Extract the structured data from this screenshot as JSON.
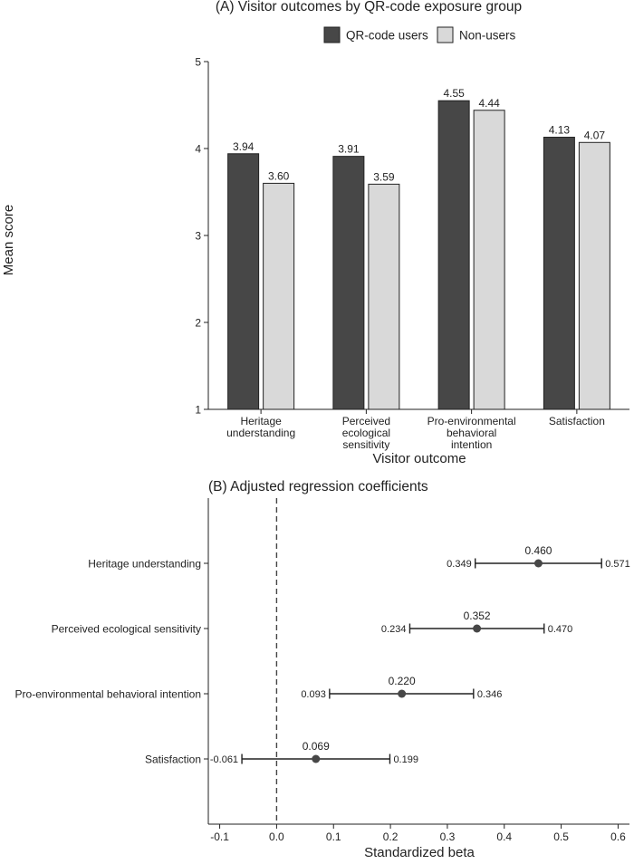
{
  "ylabel_shared": "Mean score",
  "colors": {
    "qr_users": "#474747",
    "non_users": "#d9d9d9",
    "axis": "#222222",
    "error_bar": "#222222",
    "point": "#474747",
    "zero_line": "#444444"
  },
  "chart_data": [
    {
      "type": "bar",
      "title": "(A) Visitor outcomes by QR-code exposure group",
      "xlabel": "Visitor outcome",
      "ylabel": "Mean score",
      "ylim": [
        1,
        5
      ],
      "yticks": [
        1,
        2,
        3,
        4,
        5
      ],
      "legend_position": "top",
      "categories": [
        [
          "Heritage",
          "understanding"
        ],
        [
          "Perceived",
          "ecological",
          "sensitivity"
        ],
        [
          "Pro-environmental",
          "behavioral",
          "intention"
        ],
        [
          "Satisfaction"
        ]
      ],
      "series": [
        {
          "name": "QR-code users",
          "color": "#474747",
          "values": [
            3.94,
            3.91,
            4.55,
            4.13
          ],
          "labels": [
            "3.94",
            "3.91",
            "4.55",
            "4.13"
          ]
        },
        {
          "name": "Non-users",
          "color": "#d9d9d9",
          "values": [
            3.6,
            3.59,
            4.44,
            4.07
          ],
          "labels": [
            "3.60",
            "3.59",
            "4.44",
            "4.07"
          ]
        }
      ]
    },
    {
      "type": "scatter",
      "title": "(B) Adjusted regression coefficients",
      "xlabel": "Standardized beta",
      "xlim": [
        -0.12,
        0.62
      ],
      "xticks": [
        -0.1,
        0,
        0.1,
        0.2,
        0.3,
        0.4,
        0.5,
        0.6
      ],
      "xtick_labels": [
        "-0.1",
        "0.0",
        "0.1",
        "0.2",
        "0.3",
        "0.4",
        "0.5",
        "0.6"
      ],
      "reference_line": 0,
      "categories": [
        "Heritage understanding",
        "Perceived ecological sensitivity",
        "Pro-environmental behavioral intention",
        "Satisfaction"
      ],
      "estimates": [
        0.46,
        0.352,
        0.22,
        0.069
      ],
      "estimate_labels": [
        "0.460",
        "0.352",
        "0.220",
        "0.069"
      ],
      "ci_low": [
        0.349,
        0.234,
        0.093,
        -0.061
      ],
      "ci_low_labels": [
        "0.349",
        "0.234",
        "0.093",
        "-0.061"
      ],
      "ci_high": [
        0.571,
        0.47,
        0.346,
        0.199
      ],
      "ci_high_labels": [
        "0.571",
        "0.470",
        "0.346",
        "0.199"
      ]
    }
  ]
}
